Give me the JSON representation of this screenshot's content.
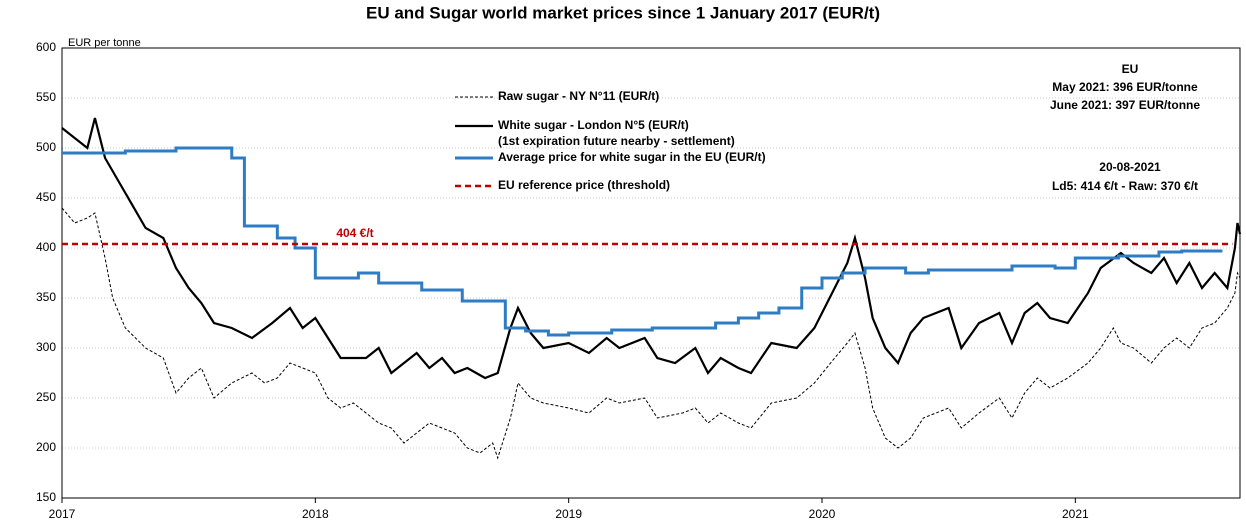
{
  "chart_data": {
    "type": "line",
    "title": "EU and Sugar world market prices since 1 January 2017 (EUR/t)",
    "y_label": "EUR per tonne",
    "xlim": [
      2017,
      2021.65
    ],
    "xticks": [
      2017,
      2018,
      2019,
      2020,
      2021
    ],
    "ylim": [
      150,
      600
    ],
    "yticks": [
      150,
      200,
      250,
      300,
      350,
      400,
      450,
      500,
      550,
      600
    ],
    "grid": true,
    "series": [
      {
        "name": "Raw sugar - NY N°11 (EUR/t)",
        "color": "#000000",
        "dashed": true,
        "x": [
          2017.0,
          2017.05,
          2017.1,
          2017.13,
          2017.17,
          2017.2,
          2017.25,
          2017.33,
          2017.4,
          2017.45,
          2017.5,
          2017.55,
          2017.6,
          2017.67,
          2017.75,
          2017.8,
          2017.85,
          2017.9,
          2017.95,
          2018.0,
          2018.05,
          2018.1,
          2018.15,
          2018.2,
          2018.25,
          2018.3,
          2018.35,
          2018.4,
          2018.45,
          2018.5,
          2018.55,
          2018.6,
          2018.65,
          2018.7,
          2018.72,
          2018.77,
          2018.8,
          2018.85,
          2018.9,
          2019.0,
          2019.08,
          2019.15,
          2019.2,
          2019.3,
          2019.35,
          2019.45,
          2019.5,
          2019.55,
          2019.6,
          2019.67,
          2019.72,
          2019.8,
          2019.9,
          2019.97,
          2020.05,
          2020.1,
          2020.13,
          2020.17,
          2020.2,
          2020.25,
          2020.3,
          2020.35,
          2020.4,
          2020.5,
          2020.55,
          2020.62,
          2020.7,
          2020.75,
          2020.8,
          2020.85,
          2020.9,
          2020.97,
          2021.05,
          2021.1,
          2021.15,
          2021.18,
          2021.23,
          2021.3,
          2021.35,
          2021.4,
          2021.45,
          2021.5,
          2021.55,
          2021.6,
          2021.63,
          2021.64,
          2021.65
        ],
        "values": [
          440,
          425,
          430,
          435,
          390,
          350,
          320,
          300,
          290,
          255,
          270,
          280,
          250,
          265,
          275,
          265,
          270,
          285,
          280,
          275,
          250,
          240,
          245,
          235,
          225,
          220,
          205,
          215,
          225,
          220,
          215,
          200,
          195,
          205,
          190,
          230,
          265,
          250,
          245,
          240,
          235,
          250,
          245,
          250,
          230,
          235,
          240,
          225,
          235,
          225,
          220,
          245,
          250,
          265,
          290,
          305,
          315,
          280,
          240,
          210,
          200,
          210,
          230,
          240,
          220,
          235,
          250,
          230,
          255,
          270,
          260,
          270,
          285,
          300,
          320,
          305,
          300,
          285,
          300,
          310,
          300,
          320,
          325,
          340,
          355,
          375,
          370
        ]
      },
      {
        "name": "White sugar - London N°5 (EUR/t)",
        "note": "(1st expiration future nearby - settlement)",
        "color": "#000000",
        "dashed": false,
        "x": [
          2017.0,
          2017.05,
          2017.1,
          2017.13,
          2017.17,
          2017.25,
          2017.33,
          2017.4,
          2017.45,
          2017.5,
          2017.55,
          2017.6,
          2017.67,
          2017.75,
          2017.83,
          2017.9,
          2017.95,
          2018.0,
          2018.05,
          2018.1,
          2018.2,
          2018.25,
          2018.3,
          2018.35,
          2018.4,
          2018.45,
          2018.5,
          2018.55,
          2018.6,
          2018.67,
          2018.72,
          2018.77,
          2018.8,
          2018.85,
          2018.9,
          2019.0,
          2019.08,
          2019.15,
          2019.2,
          2019.3,
          2019.35,
          2019.42,
          2019.5,
          2019.55,
          2019.6,
          2019.67,
          2019.72,
          2019.8,
          2019.9,
          2019.97,
          2020.05,
          2020.1,
          2020.13,
          2020.17,
          2020.2,
          2020.25,
          2020.3,
          2020.35,
          2020.4,
          2020.5,
          2020.55,
          2020.62,
          2020.7,
          2020.75,
          2020.8,
          2020.85,
          2020.9,
          2020.97,
          2021.05,
          2021.1,
          2021.18,
          2021.23,
          2021.3,
          2021.35,
          2021.4,
          2021.45,
          2021.5,
          2021.55,
          2021.6,
          2021.63,
          2021.64,
          2021.65
        ],
        "values": [
          520,
          510,
          500,
          530,
          490,
          455,
          420,
          410,
          380,
          360,
          345,
          325,
          320,
          310,
          325,
          340,
          320,
          330,
          310,
          290,
          290,
          300,
          275,
          285,
          295,
          280,
          290,
          275,
          280,
          270,
          275,
          320,
          340,
          315,
          300,
          305,
          295,
          310,
          300,
          310,
          290,
          285,
          300,
          275,
          290,
          280,
          275,
          305,
          300,
          320,
          360,
          385,
          410,
          370,
          330,
          300,
          285,
          315,
          330,
          340,
          300,
          325,
          335,
          305,
          335,
          345,
          330,
          325,
          355,
          380,
          395,
          385,
          375,
          390,
          365,
          385,
          360,
          375,
          360,
          400,
          425,
          414
        ]
      },
      {
        "name": "Average price for white sugar in the EU (EUR/t)",
        "color": "#2e7dc4",
        "dashed": false,
        "step": true,
        "x": [
          2017.0,
          2017.25,
          2017.45,
          2017.67,
          2017.72,
          2017.85,
          2017.92,
          2018.0,
          2018.17,
          2018.25,
          2018.42,
          2018.58,
          2018.75,
          2018.83,
          2018.92,
          2019.0,
          2019.17,
          2019.33,
          2019.58,
          2019.67,
          2019.75,
          2019.83,
          2019.92,
          2020.0,
          2020.08,
          2020.17,
          2020.33,
          2020.42,
          2020.58,
          2020.75,
          2020.92,
          2021.0,
          2021.17,
          2021.33,
          2021.42,
          2021.58
        ],
        "values": [
          495,
          497,
          500,
          490,
          422,
          410,
          400,
          370,
          375,
          365,
          358,
          347,
          320,
          317,
          313,
          315,
          318,
          320,
          325,
          330,
          335,
          340,
          360,
          370,
          375,
          380,
          375,
          378,
          378,
          382,
          380,
          390,
          392,
          396,
          397,
          397
        ]
      },
      {
        "name": "EU reference price  (threshold)",
        "color": "#c00000",
        "dashed": true,
        "x": [
          2017.0,
          2021.62
        ],
        "values": [
          404,
          404
        ]
      }
    ],
    "annotations": [
      "404 €/t",
      "EU",
      "May 2021: 396 EUR/tonne",
      "June 2021: 397 EUR/tonne",
      "20-08-2021",
      "Ld5: 414 €/t - Raw: 370 €/t"
    ]
  }
}
